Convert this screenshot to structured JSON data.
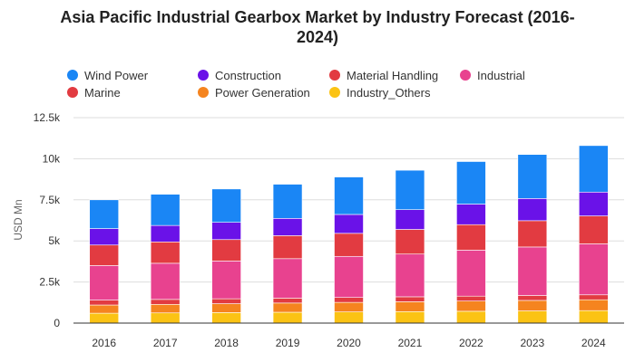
{
  "chart_data": {
    "type": "bar",
    "stacked": true,
    "title_line1": "Asia Pacific Industrial Gearbox Market by Industry Forecast (2016-",
    "title_line2": "2024)",
    "xlabel": "",
    "ylabel": "USD Mn",
    "ylim": [
      0,
      12500
    ],
    "y_ticks": [
      {
        "value": 0,
        "label": "0"
      },
      {
        "value": 2500,
        "label": "2.5k"
      },
      {
        "value": 5000,
        "label": "5k"
      },
      {
        "value": 7500,
        "label": "7.5k"
      },
      {
        "value": 10000,
        "label": "10k"
      },
      {
        "value": 12500,
        "label": "12.5k"
      }
    ],
    "grid": true,
    "legend_position": "top",
    "categories": [
      "2016",
      "2017",
      "2018",
      "2019",
      "2020",
      "2021",
      "2022",
      "2023",
      "2024"
    ],
    "legend": [
      {
        "name": "Wind Power",
        "color": "#1a86f5"
      },
      {
        "name": "Construction",
        "color": "#6a12e8"
      },
      {
        "name": "Material Handling",
        "color": "#e23b41"
      },
      {
        "name": "Industrial",
        "color": "#e8428f"
      },
      {
        "name": "Marine",
        "color": "#e23b41"
      },
      {
        "name": "Power Generation",
        "color": "#f5841f"
      },
      {
        "name": "Industry_Others",
        "color": "#fbc314"
      }
    ],
    "series": [
      {
        "name": "Industry_Others",
        "color": "#fbc314",
        "values": [
          600,
          620,
          640,
          660,
          680,
          700,
          720,
          740,
          760
        ]
      },
      {
        "name": "Power Generation",
        "color": "#f5841f",
        "values": [
          500,
          520,
          540,
          560,
          580,
          600,
          620,
          640,
          660
        ]
      },
      {
        "name": "Marine",
        "color": "#e23b41",
        "values": [
          300,
          300,
          300,
          300,
          300,
          300,
          300,
          300,
          300
        ]
      },
      {
        "name": "Industrial",
        "color": "#e8428f",
        "values": [
          2100,
          2200,
          2300,
          2400,
          2500,
          2600,
          2800,
          2950,
          3100
        ]
      },
      {
        "name": "Material Handling",
        "color": "#e23b41",
        "values": [
          1250,
          1300,
          1300,
          1400,
          1400,
          1500,
          1550,
          1600,
          1700
        ]
      },
      {
        "name": "Construction",
        "color": "#6a12e8",
        "values": [
          1000,
          1000,
          1050,
          1050,
          1150,
          1200,
          1250,
          1350,
          1450
        ]
      },
      {
        "name": "Wind Power",
        "color": "#1a86f5",
        "values": [
          1750,
          1900,
          2030,
          2080,
          2280,
          2400,
          2590,
          2680,
          2830
        ]
      }
    ]
  }
}
